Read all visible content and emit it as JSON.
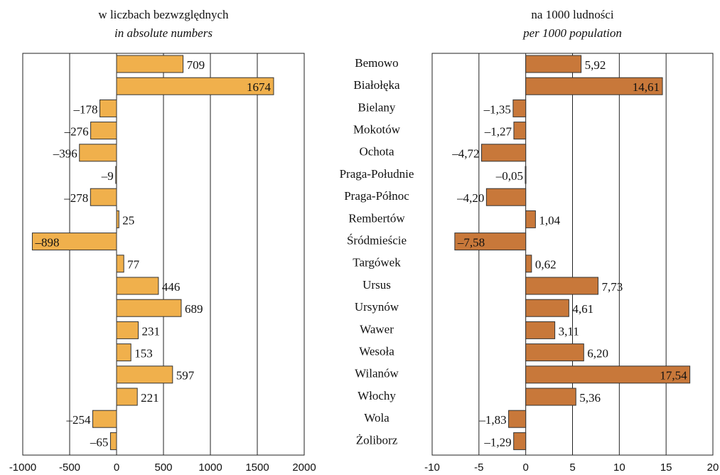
{
  "chart_data": [
    {
      "type": "hbar",
      "title": "w liczbach bezwzględnych",
      "subtitle": "in absolute numbers",
      "categories": [
        "Bemowo",
        "Białołęka",
        "Bielany",
        "Mokotów",
        "Ochota",
        "Praga-Południe",
        "Praga-Północ",
        "Rembertów",
        "Śródmieście",
        "Targówek",
        "Ursus",
        "Ursynów",
        "Wawer",
        "Wesoła",
        "Wilanów",
        "Włochy",
        "Wola",
        "Żoliborz"
      ],
      "values": [
        709,
        1674,
        -178,
        -276,
        -396,
        -9,
        -278,
        25,
        -898,
        77,
        446,
        689,
        231,
        153,
        597,
        221,
        -254,
        -65
      ],
      "value_labels": [
        "709",
        "1674",
        "–178",
        "–276",
        "–396",
        "–9",
        "–278",
        "25",
        "–898",
        "77",
        "446",
        "689",
        "231",
        "153",
        "597",
        "221",
        "–254",
        "–65"
      ],
      "color": "#f0b04c",
      "xlim": [
        -1000,
        2000
      ],
      "xticks": [
        -1000,
        -500,
        0,
        500,
        1000,
        1500,
        2000
      ],
      "grid": true
    },
    {
      "type": "hbar",
      "title": "na 1000 ludności",
      "subtitle": "per 1000 population",
      "values": [
        5.92,
        14.61,
        -1.35,
        -1.27,
        -4.72,
        -0.05,
        -4.2,
        1.04,
        -7.58,
        0.62,
        7.73,
        4.61,
        3.11,
        6.2,
        17.54,
        5.36,
        -1.83,
        -1.29
      ],
      "value_labels": [
        "5,92",
        "14,61",
        "–1,35",
        "–1,27",
        "–4,72",
        "–0,05",
        "–4,20",
        "1,04",
        "–7,58",
        "0,62",
        "7,73",
        "4,61",
        "3,11",
        "6,20",
        "17,54",
        "5,36",
        "–1,83",
        "–1,29"
      ],
      "color": "#c8783a",
      "xlim": [
        -10,
        20
      ],
      "xticks": [
        -10,
        -5,
        0,
        5,
        10,
        15,
        20
      ],
      "grid": true
    }
  ]
}
